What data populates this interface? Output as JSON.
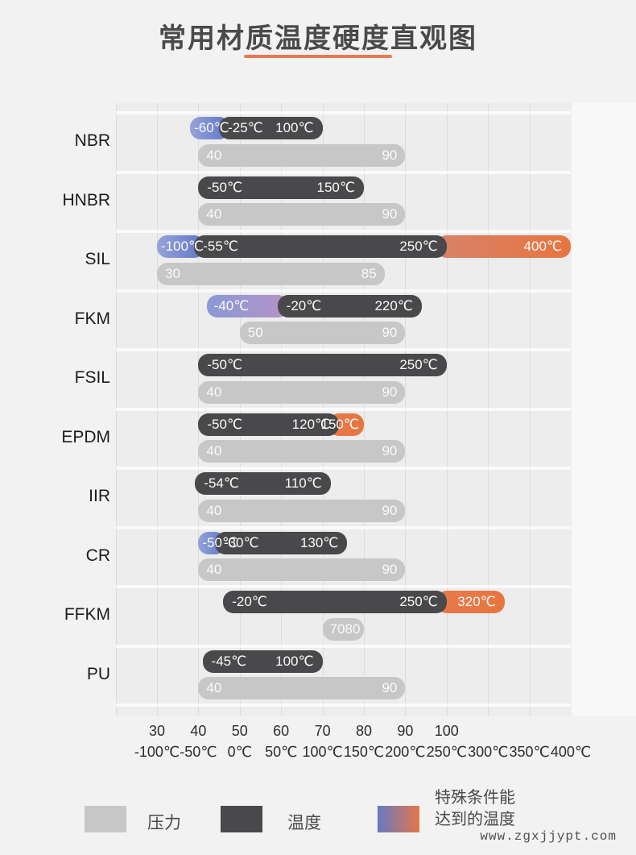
{
  "title": "常用材质温度硬度直观图",
  "watermark": "www.zgxjjypt.com",
  "colors": {
    "background": "#f2f2f2",
    "bar_temperature": "#49484b",
    "bar_pressure": "#c8c7c8",
    "special_blue": "#5e76c5",
    "special_blue_light": "#98a5da",
    "special_orange": "#e7784a",
    "special_orange_muted": "#d8816a",
    "title_underline": "#e87a4e",
    "gridline": "#dcdcdc"
  },
  "legend": {
    "pressure_label": "压力",
    "temperature_label": "温度",
    "special_label_line1": "特殊条件能",
    "special_label_line2": "达到的温度"
  },
  "chart_data": {
    "type": "bar",
    "title": "常用材质温度硬度直观图",
    "temperature_axis": {
      "range": [
        -100,
        400
      ],
      "ticks": [
        -100,
        -50,
        0,
        50,
        100,
        150,
        200,
        250,
        300,
        350,
        400
      ],
      "tick_labels": [
        "-100℃",
        "-50℃",
        "0℃",
        "50℃",
        "100℃",
        "150℃",
        "200℃",
        "250℃",
        "300℃",
        "350℃",
        "400℃"
      ]
    },
    "hardness_axis": {
      "range": [
        30,
        100
      ],
      "ticks": [
        30,
        40,
        50,
        60,
        70,
        80,
        90,
        100
      ],
      "tick_labels": [
        "30",
        "40",
        "50",
        "60",
        "70",
        "80",
        "90",
        "100"
      ]
    },
    "materials": [
      {
        "name": "NBR",
        "temp_min": -25,
        "temp_max": 100,
        "special_low": -60,
        "special_high": null,
        "hardness": [
          40,
          90
        ],
        "labels": {
          "special_low": "-60℃",
          "min": "-25℃",
          "max": "100℃",
          "special_high": null,
          "h_min": "40",
          "h_max": "90"
        }
      },
      {
        "name": "HNBR",
        "temp_min": -50,
        "temp_max": 150,
        "special_low": null,
        "special_high": null,
        "hardness": [
          40,
          90
        ],
        "labels": {
          "special_low": null,
          "min": "-50℃",
          "max": "150℃",
          "special_high": null,
          "h_min": "40",
          "h_max": "90"
        }
      },
      {
        "name": "SIL",
        "temp_min": -55,
        "temp_max": 250,
        "special_low": -100,
        "special_high": 400,
        "hardness": [
          30,
          85
        ],
        "labels": {
          "special_low": "-100℃",
          "min": "-55℃",
          "max": "250℃",
          "special_high": "400℃",
          "h_min": "30",
          "h_max": "85"
        }
      },
      {
        "name": "FKM",
        "temp_min": -20,
        "temp_max": 220,
        "special_low": -40,
        "special_high": null,
        "hardness": [
          50,
          90
        ],
        "blend_width": 88,
        "labels": {
          "special_low": "-40℃",
          "min": "-20℃",
          "max": "220℃",
          "special_high": null,
          "h_min": "50",
          "h_max": "90"
        }
      },
      {
        "name": "FSIL",
        "temp_min": -50,
        "temp_max": 250,
        "special_low": null,
        "special_high": null,
        "hardness": [
          40,
          90
        ],
        "labels": {
          "special_low": null,
          "min": "-50℃",
          "max": "250℃",
          "special_high": null,
          "h_min": "40",
          "h_max": "90"
        }
      },
      {
        "name": "EPDM",
        "temp_min": -50,
        "temp_max": 120,
        "special_low": null,
        "special_high": 150,
        "hardness": [
          40,
          90
        ],
        "labels": {
          "special_low": null,
          "min": "-50℃",
          "max": "120℃",
          "special_high": "150℃",
          "h_min": "40",
          "h_max": "90"
        }
      },
      {
        "name": "IIR",
        "temp_min": -54,
        "temp_max": 110,
        "special_low": null,
        "special_high": null,
        "hardness": [
          40,
          90
        ],
        "labels": {
          "special_low": null,
          "min": "-54℃",
          "max": "110℃",
          "special_high": null,
          "h_min": "40",
          "h_max": "90"
        }
      },
      {
        "name": "CR",
        "temp_min": -30,
        "temp_max": 130,
        "special_low": -50,
        "special_high": null,
        "hardness": [
          40,
          90
        ],
        "labels": {
          "special_low": "-50℃",
          "min": "-30℃",
          "max": "130℃",
          "special_high": null,
          "h_min": "40",
          "h_max": "90"
        }
      },
      {
        "name": "FFKM",
        "temp_min": -20,
        "temp_max": 250,
        "special_low": null,
        "special_high": 320,
        "hardness": [
          70,
          80
        ],
        "labels": {
          "special_low": null,
          "min": "-20℃",
          "max": "250℃",
          "special_high": "320℃",
          "h_min": "70",
          "h_max": "80"
        }
      },
      {
        "name": "PU",
        "temp_min": -45,
        "temp_max": 100,
        "special_low": null,
        "special_high": null,
        "hardness": [
          40,
          90
        ],
        "labels": {
          "special_low": null,
          "min": "-45℃",
          "max": "100℃",
          "special_high": null,
          "h_min": "40",
          "h_max": "90"
        }
      }
    ],
    "legend_entries": [
      "压力",
      "温度",
      "特殊条件能达到的温度"
    ],
    "grid": true,
    "legend_position": "bottom"
  }
}
